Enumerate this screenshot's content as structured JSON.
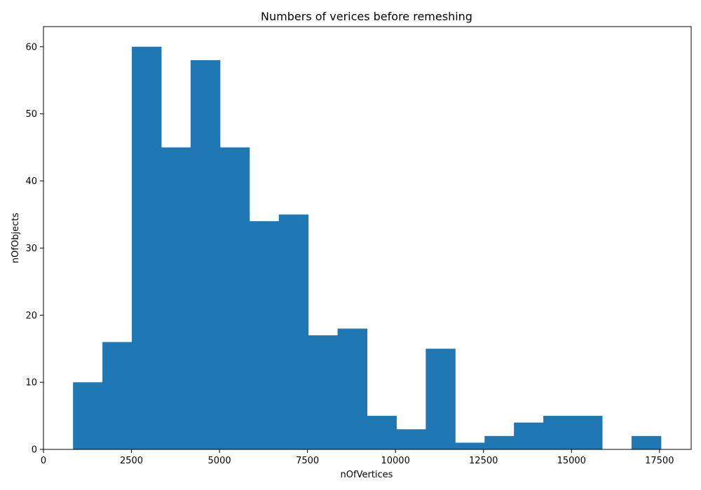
{
  "chart_data": {
    "type": "bar",
    "title": "Numbers of verices before remeshing",
    "xlabel": "nOfVertices",
    "ylabel": "nOfObjects",
    "xlim": [
      0,
      18400
    ],
    "ylim": [
      0,
      63
    ],
    "xticks": [
      0,
      2500,
      5000,
      7500,
      10000,
      12500,
      15000,
      17500
    ],
    "yticks": [
      0,
      10,
      20,
      30,
      40,
      50,
      60
    ],
    "bar_color": "#1f77b4",
    "grid": false,
    "bins": [
      {
        "x0": 840,
        "x1": 1675,
        "count": 10
      },
      {
        "x0": 1675,
        "x1": 2510,
        "count": 16
      },
      {
        "x0": 2510,
        "x1": 3345,
        "count": 60
      },
      {
        "x0": 3345,
        "x1": 4180,
        "count": 45
      },
      {
        "x0": 4180,
        "x1": 5015,
        "count": 58
      },
      {
        "x0": 5015,
        "x1": 5850,
        "count": 45
      },
      {
        "x0": 5850,
        "x1": 6685,
        "count": 34
      },
      {
        "x0": 6685,
        "x1": 7520,
        "count": 35
      },
      {
        "x0": 7520,
        "x1": 8355,
        "count": 17
      },
      {
        "x0": 8355,
        "x1": 9190,
        "count": 18
      },
      {
        "x0": 9190,
        "x1": 10025,
        "count": 5
      },
      {
        "x0": 10025,
        "x1": 10860,
        "count": 3
      },
      {
        "x0": 10860,
        "x1": 11695,
        "count": 15
      },
      {
        "x0": 11695,
        "x1": 12530,
        "count": 1
      },
      {
        "x0": 12530,
        "x1": 13365,
        "count": 2
      },
      {
        "x0": 13365,
        "x1": 14200,
        "count": 4
      },
      {
        "x0": 14200,
        "x1": 15035,
        "count": 5
      },
      {
        "x0": 15035,
        "x1": 15870,
        "count": 5
      },
      {
        "x0": 15870,
        "x1": 16705,
        "count": 0
      },
      {
        "x0": 16705,
        "x1": 17540,
        "count": 2
      }
    ]
  }
}
